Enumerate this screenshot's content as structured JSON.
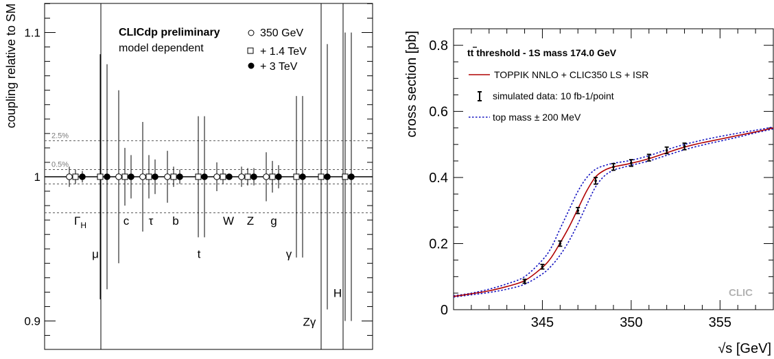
{
  "chart_data": [
    {
      "type": "scatter",
      "ylabel": "coupling relative to SM",
      "ylim": [
        0.885,
        1.12
      ],
      "yticks": [
        "0.9",
        "1",
        "1.1"
      ],
      "annotation_title": "CLICdp preliminary",
      "annotation_sub": "model dependent",
      "ref_lines": [
        {
          "y": 1.025,
          "label": "2.5%"
        },
        {
          "y": 1.005,
          "label": "0.5%"
        },
        {
          "y": 0.995,
          "label": ""
        },
        {
          "y": 0.975,
          "label": ""
        }
      ],
      "legend": [
        {
          "marker": "open-circle",
          "label": "350 GeV"
        },
        {
          "marker": "open-square",
          "label": "+ 1.4 TeV"
        },
        {
          "marker": "filled-circle",
          "label": "+ 3 TeV"
        }
      ],
      "couplings": [
        {
          "label": "ΓH",
          "main": "Γ",
          "sub": "H",
          "label_y": 0.97,
          "err": [
            0.007,
            0.005,
            0.004
          ]
        },
        {
          "label": "μ",
          "main": "μ",
          "sub": "",
          "label_y": 0.947,
          "err": [
            null,
            0.085,
            0.078
          ]
        },
        {
          "label": "c",
          "main": "c",
          "sub": "",
          "label_y": 0.97,
          "err": [
            0.06,
            0.02,
            0.015
          ]
        },
        {
          "label": "τ",
          "main": "τ",
          "sub": "",
          "label_y": 0.97,
          "err": [
            0.038,
            0.015,
            0.012
          ]
        },
        {
          "label": "b",
          "main": "b",
          "sub": "",
          "label_y": 0.97,
          "err": [
            0.018,
            0.007,
            0.005
          ]
        },
        {
          "label": "t",
          "main": "t",
          "sub": "",
          "label_y": 0.947,
          "err": [
            null,
            0.042,
            0.042
          ]
        },
        {
          "label": "W",
          "main": "W",
          "sub": "",
          "label_y": 0.97,
          "err": [
            0.01,
            0.005,
            0.002
          ]
        },
        {
          "label": "Z",
          "main": "Z",
          "sub": "",
          "label_y": 0.97,
          "err": [
            0.007,
            0.006,
            0.006
          ]
        },
        {
          "label": "g",
          "main": "g",
          "sub": "",
          "label_y": 0.97,
          "err": [
            0.017,
            0.011,
            0.008
          ]
        },
        {
          "label": "γ",
          "main": "γ",
          "sub": "",
          "label_y": 0.947,
          "err": [
            null,
            0.056,
            0.056
          ]
        },
        {
          "label": "Zγ",
          "main": "Zγ",
          "sub": "",
          "label_y": 0.9,
          "err": [
            null,
            0.092,
            0.092
          ]
        },
        {
          "label": "H",
          "main": "H",
          "sub": "",
          "label_y": 0.92,
          "err": [
            null,
            0.1,
            0.1
          ]
        }
      ]
    },
    {
      "type": "line",
      "ylabel": "cross section [pb]",
      "xlabel": "√s [GeV]",
      "xlim": [
        340,
        358
      ],
      "ylim": [
        0,
        0.85
      ],
      "xticks": [
        "345",
        "350",
        "355"
      ],
      "yticks": [
        "0",
        "0.2",
        "0.4",
        "0.6",
        "0.8"
      ],
      "title_main": "tt threshold - 1S mass 174.0 GeV",
      "watermark": "CLIC",
      "legend": [
        {
          "style": "red-solid",
          "label": "TOPPIK NNLO + CLIC350 LS + ISR"
        },
        {
          "style": "errorbar",
          "label": "simulated data: 10 fb-1/point"
        },
        {
          "style": "blue-dotted",
          "label": "top mass ± 200 MeV"
        }
      ],
      "series": [
        {
          "name": "TOPPIK NNLO + CLIC350 LS + ISR",
          "x": [
            340,
            341,
            342,
            343,
            344,
            345,
            345.5,
            346,
            346.5,
            347,
            347.5,
            348,
            348.5,
            349,
            350,
            351,
            352,
            353,
            354,
            355,
            356,
            357,
            358
          ],
          "y": [
            0.04,
            0.048,
            0.057,
            0.07,
            0.088,
            0.128,
            0.158,
            0.202,
            0.25,
            0.305,
            0.36,
            0.402,
            0.422,
            0.432,
            0.443,
            0.457,
            0.475,
            0.492,
            0.505,
            0.516,
            0.527,
            0.538,
            0.55
          ]
        },
        {
          "name": "top mass + 200 MeV",
          "x": [
            340,
            341,
            342,
            343,
            344,
            345,
            345.5,
            346,
            346.5,
            347,
            347.5,
            348,
            348.5,
            349,
            349.5,
            350,
            351,
            352,
            353,
            354,
            355,
            356,
            357,
            358
          ],
          "y": [
            0.038,
            0.045,
            0.052,
            0.062,
            0.077,
            0.108,
            0.132,
            0.165,
            0.208,
            0.26,
            0.318,
            0.372,
            0.405,
            0.422,
            0.43,
            0.437,
            0.45,
            0.467,
            0.484,
            0.498,
            0.51,
            0.522,
            0.535,
            0.547
          ]
        },
        {
          "name": "top mass - 200 MeV",
          "x": [
            340,
            341,
            342,
            343,
            344,
            345,
            345.5,
            346,
            346.5,
            347,
            347.5,
            348,
            348.5,
            349,
            350,
            351,
            352,
            353,
            354,
            355,
            356,
            357,
            358
          ],
          "y": [
            0.042,
            0.05,
            0.062,
            0.078,
            0.1,
            0.15,
            0.188,
            0.245,
            0.302,
            0.358,
            0.4,
            0.425,
            0.436,
            0.443,
            0.452,
            0.466,
            0.484,
            0.5,
            0.513,
            0.524,
            0.534,
            0.543,
            0.553
          ]
        },
        {
          "name": "simulated data: 10 fb-1/point",
          "x": [
            344,
            345,
            346,
            347,
            348,
            349,
            350,
            351,
            352,
            353
          ],
          "y": [
            0.086,
            0.13,
            0.2,
            0.3,
            0.39,
            0.432,
            0.444,
            0.46,
            0.482,
            0.494
          ],
          "err": [
            0.006,
            0.007,
            0.008,
            0.009,
            0.01,
            0.01,
            0.01,
            0.01,
            0.01,
            0.01
          ]
        }
      ]
    }
  ]
}
